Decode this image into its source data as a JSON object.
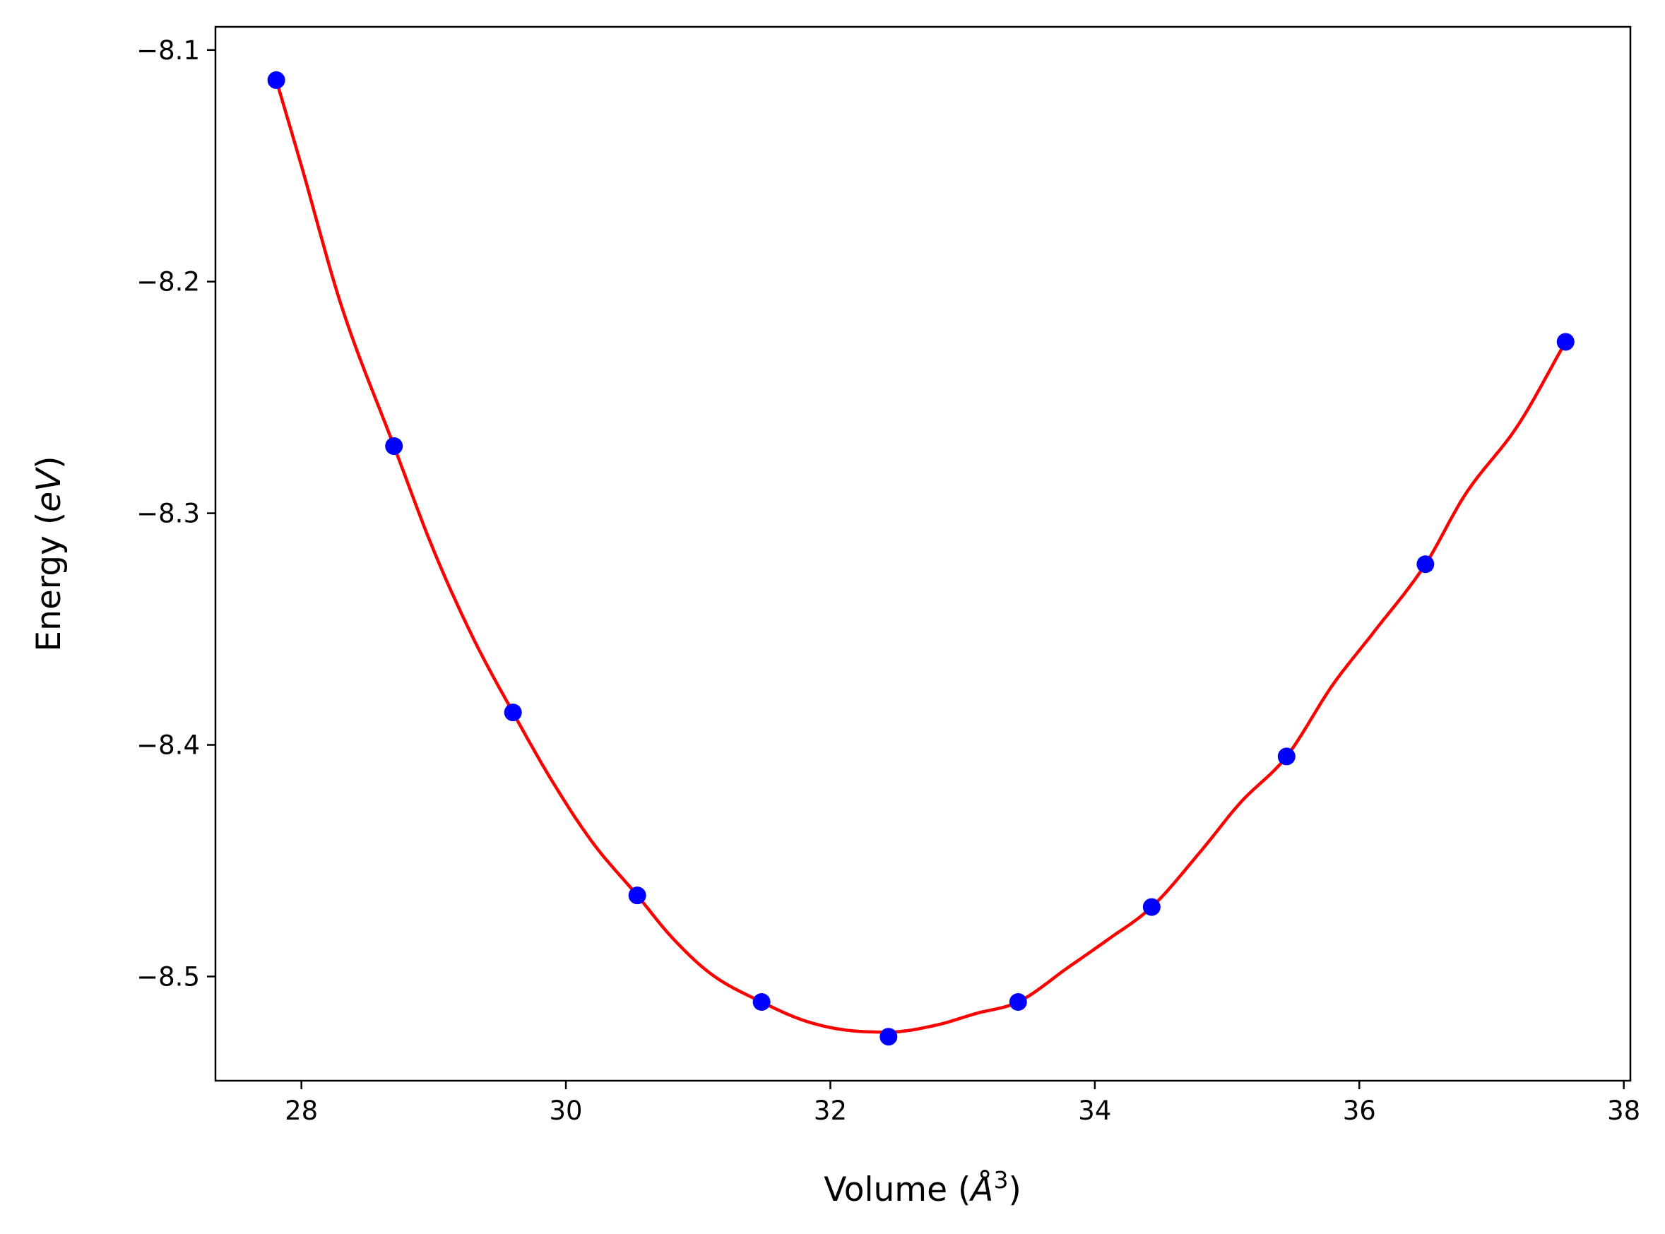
{
  "chart_data": {
    "type": "scatter",
    "title": "",
    "xlabel": "Volume ($\\AA^3$)",
    "ylabel": "Energy ($eV$)",
    "xlabel_parts": {
      "prefix": "Volume (",
      "unit": "Å",
      "exp": "3",
      "suffix": ")"
    },
    "ylabel_parts": {
      "prefix": "Energy (",
      "unit": "eV",
      "suffix": ")"
    },
    "xlim": [
      27.35,
      38.05
    ],
    "ylim": [
      -8.545,
      -8.09
    ],
    "xticks": [
      28,
      30,
      32,
      34,
      36,
      38
    ],
    "yticks": [
      -8.1,
      -8.2,
      -8.3,
      -8.4,
      -8.5
    ],
    "grid": false,
    "series": [
      {
        "kind": "points",
        "color": "#0000ff",
        "x": [
          27.81,
          28.7,
          29.6,
          30.54,
          31.48,
          32.44,
          33.42,
          34.43,
          35.45,
          36.5,
          37.56
        ],
        "y": [
          -8.113,
          -8.271,
          -8.386,
          -8.465,
          -8.511,
          -8.526,
          -8.511,
          -8.47,
          -8.405,
          -8.322,
          -8.226
        ]
      },
      {
        "kind": "fit-line",
        "color": "#ff0000",
        "x": [
          27.81,
          28.0,
          28.3,
          28.7,
          29.0,
          29.3,
          29.6,
          29.9,
          30.2,
          30.54,
          30.8,
          31.1,
          31.48,
          31.8,
          32.1,
          32.44,
          32.8,
          33.1,
          33.42,
          33.8,
          34.1,
          34.43,
          34.8,
          35.1,
          35.45,
          35.8,
          36.1,
          36.5,
          36.8,
          37.2,
          37.56
        ],
        "y": [
          -8.113,
          -8.15,
          -8.21,
          -8.271,
          -8.316,
          -8.354,
          -8.386,
          -8.416,
          -8.442,
          -8.465,
          -8.483,
          -8.499,
          -8.511,
          -8.519,
          -8.523,
          -8.524,
          -8.521,
          -8.516,
          -8.511,
          -8.496,
          -8.484,
          -8.47,
          -8.446,
          -8.425,
          -8.405,
          -8.374,
          -8.352,
          -8.322,
          -8.292,
          -8.262,
          -8.226
        ]
      }
    ]
  }
}
